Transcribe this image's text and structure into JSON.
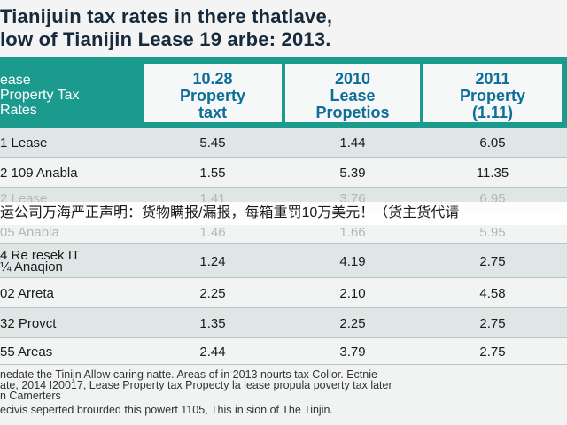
{
  "title": {
    "line1": "Tianijuin tax rates in there thatlave,",
    "line2": "low of Tianijin Lease 19 arbe: 2013."
  },
  "header": {
    "row_label": "ease\nProperty Tax\nRates",
    "columns": [
      "10.28\nProperty\ntaxt",
      "2010\nLease\nPropetios",
      "2011\nProperty\n(1.11)"
    ]
  },
  "rows": [
    {
      "label": "1 Lease",
      "values": [
        "5.45",
        "1.44",
        "6.05"
      ]
    },
    {
      "label": "2 109 Anabla",
      "values": [
        "1.55",
        "5.39",
        "11.35"
      ]
    },
    {
      "label": "2 Lease",
      "values": [
        "1.41",
        "3.76",
        "6.95"
      ]
    },
    {
      "label": "05 Anabla",
      "values": [
        "1.46",
        "1.66",
        "5.95"
      ]
    },
    {
      "label": "4 Re resek IT\n¼ Anaqion",
      "values": [
        "1.24",
        "4.19",
        "2.75"
      ]
    },
    {
      "label": "02 Arreta",
      "values": [
        "2.25",
        "2.10",
        "4.58"
      ]
    },
    {
      "label": "32 Provct",
      "values": [
        "1.35",
        "2.25",
        "2.75"
      ]
    },
    {
      "label": "55 Areas",
      "values": [
        "2.44",
        "3.79",
        "2.75"
      ]
    }
  ],
  "banner": "运公司万海严正声明：货物瞒报/漏报，每箱重罚10万美元！（货主货代请",
  "footer": {
    "line1": "nedate the Tinijn Allow caring natte. Areas of in 2013 nourts tax Collor. Ectnie",
    "line2": "ate, 2014 I20017, Lease Property tax Propecty la lease propula poverty tax later",
    "line3": "n Camerters",
    "line4": "ecivis seperted brourded this powert 1105, This in sion of The Tinjin."
  },
  "colors": {
    "header_bg": "#1b9a8e",
    "header_text": "#0d6e98",
    "title_text": "#162a3b"
  }
}
